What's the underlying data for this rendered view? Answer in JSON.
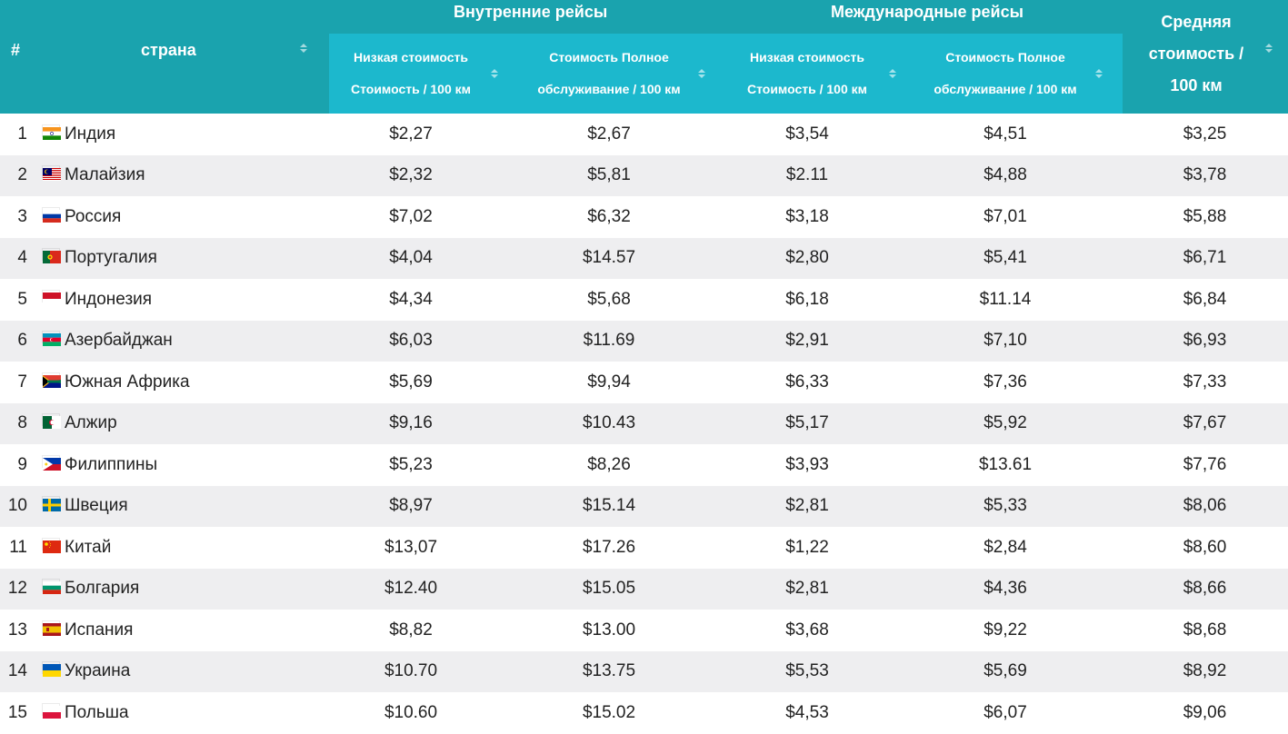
{
  "header": {
    "rank_label": "#",
    "country_label": "страна",
    "domestic_group": "Внутренние рейсы",
    "international_group": "Международные рейсы",
    "average_line1": "Средняя",
    "average_line2": "стоимость /",
    "average_line3": "100 км",
    "domestic_low_line1": "Низкая стоимость",
    "domestic_low_line2": "Стоимость / 100 км",
    "domestic_full_line1": "Стоимость Полное",
    "domestic_full_line2": "обслуживание / 100 км",
    "intl_low_line1": "Низкая стоимость",
    "intl_low_line2": "Стоимость / 100 км",
    "intl_full_line1": "Стоимость Полное",
    "intl_full_line2": "обслуживание / 100 км"
  },
  "rows": [
    {
      "rank": "1",
      "country": "Индия",
      "flag": "india-flag-icon",
      "dom_low": "$2,27",
      "dom_full": "$2,67",
      "int_low": "$3,54",
      "int_full": "$4,51",
      "avg": "$3,25"
    },
    {
      "rank": "2",
      "country": "Малайзия",
      "flag": "malaysia-flag-icon",
      "dom_low": "$2,32",
      "dom_full": "$5,81",
      "int_low": "$2.11",
      "int_full": "$4,88",
      "avg": "$3,78"
    },
    {
      "rank": "3",
      "country": "Россия",
      "flag": "russia-flag-icon",
      "dom_low": "$7,02",
      "dom_full": "$6,32",
      "int_low": "$3,18",
      "int_full": "$7,01",
      "avg": "$5,88"
    },
    {
      "rank": "4",
      "country": "Португалия",
      "flag": "portugal-flag-icon",
      "dom_low": "$4,04",
      "dom_full": "$14.57",
      "int_low": "$2,80",
      "int_full": "$5,41",
      "avg": "$6,71"
    },
    {
      "rank": "5",
      "country": "Индонезия",
      "flag": "indonesia-flag-icon",
      "dom_low": "$4,34",
      "dom_full": "$5,68",
      "int_low": "$6,18",
      "int_full": "$11.14",
      "avg": "$6,84"
    },
    {
      "rank": "6",
      "country": "Азербайджан",
      "flag": "azerbaijan-flag-icon",
      "dom_low": "$6,03",
      "dom_full": "$11.69",
      "int_low": "$2,91",
      "int_full": "$7,10",
      "avg": "$6,93"
    },
    {
      "rank": "7",
      "country": "Южная Африка",
      "flag": "south-africa-flag-icon",
      "dom_low": "$5,69",
      "dom_full": "$9,94",
      "int_low": "$6,33",
      "int_full": "$7,36",
      "avg": "$7,33"
    },
    {
      "rank": "8",
      "country": "Алжир",
      "flag": "algeria-flag-icon",
      "dom_low": "$9,16",
      "dom_full": "$10.43",
      "int_low": "$5,17",
      "int_full": "$5,92",
      "avg": "$7,67"
    },
    {
      "rank": "9",
      "country": "Филиппины",
      "flag": "philippines-flag-icon",
      "dom_low": "$5,23",
      "dom_full": "$8,26",
      "int_low": "$3,93",
      "int_full": "$13.61",
      "avg": "$7,76"
    },
    {
      "rank": "10",
      "country": "Швеция",
      "flag": "sweden-flag-icon",
      "dom_low": "$8,97",
      "dom_full": "$15.14",
      "int_low": "$2,81",
      "int_full": "$5,33",
      "avg": "$8,06"
    },
    {
      "rank": "11",
      "country": "Китай",
      "flag": "china-flag-icon",
      "dom_low": "$13,07",
      "dom_full": "$17.26",
      "int_low": "$1,22",
      "int_full": "$2,84",
      "avg": "$8,60"
    },
    {
      "rank": "12",
      "country": "Болгария",
      "flag": "bulgaria-flag-icon",
      "dom_low": "$12.40",
      "dom_full": "$15.05",
      "int_low": "$2,81",
      "int_full": "$4,36",
      "avg": "$8,66"
    },
    {
      "rank": "13",
      "country": "Испания",
      "flag": "spain-flag-icon",
      "dom_low": "$8,82",
      "dom_full": "$13.00",
      "int_low": "$3,68",
      "int_full": "$9,22",
      "avg": "$8,68"
    },
    {
      "rank": "14",
      "country": "Украина",
      "flag": "ukraine-flag-icon",
      "dom_low": "$10.70",
      "dom_full": "$13.75",
      "int_low": "$5,53",
      "int_full": "$5,69",
      "avg": "$8,92"
    },
    {
      "rank": "15",
      "country": "Польша",
      "flag": "poland-flag-icon",
      "dom_low": "$10.60",
      "dom_full": "$15.02",
      "int_low": "$4,53",
      "int_full": "$6,07",
      "avg": "$9,06"
    }
  ],
  "colors": {
    "header_bg": "#1aa3ae",
    "subheader_bg": "#1cb8cd",
    "header_text": "#ffffff",
    "row_alt_bg": "#eeeef0"
  }
}
